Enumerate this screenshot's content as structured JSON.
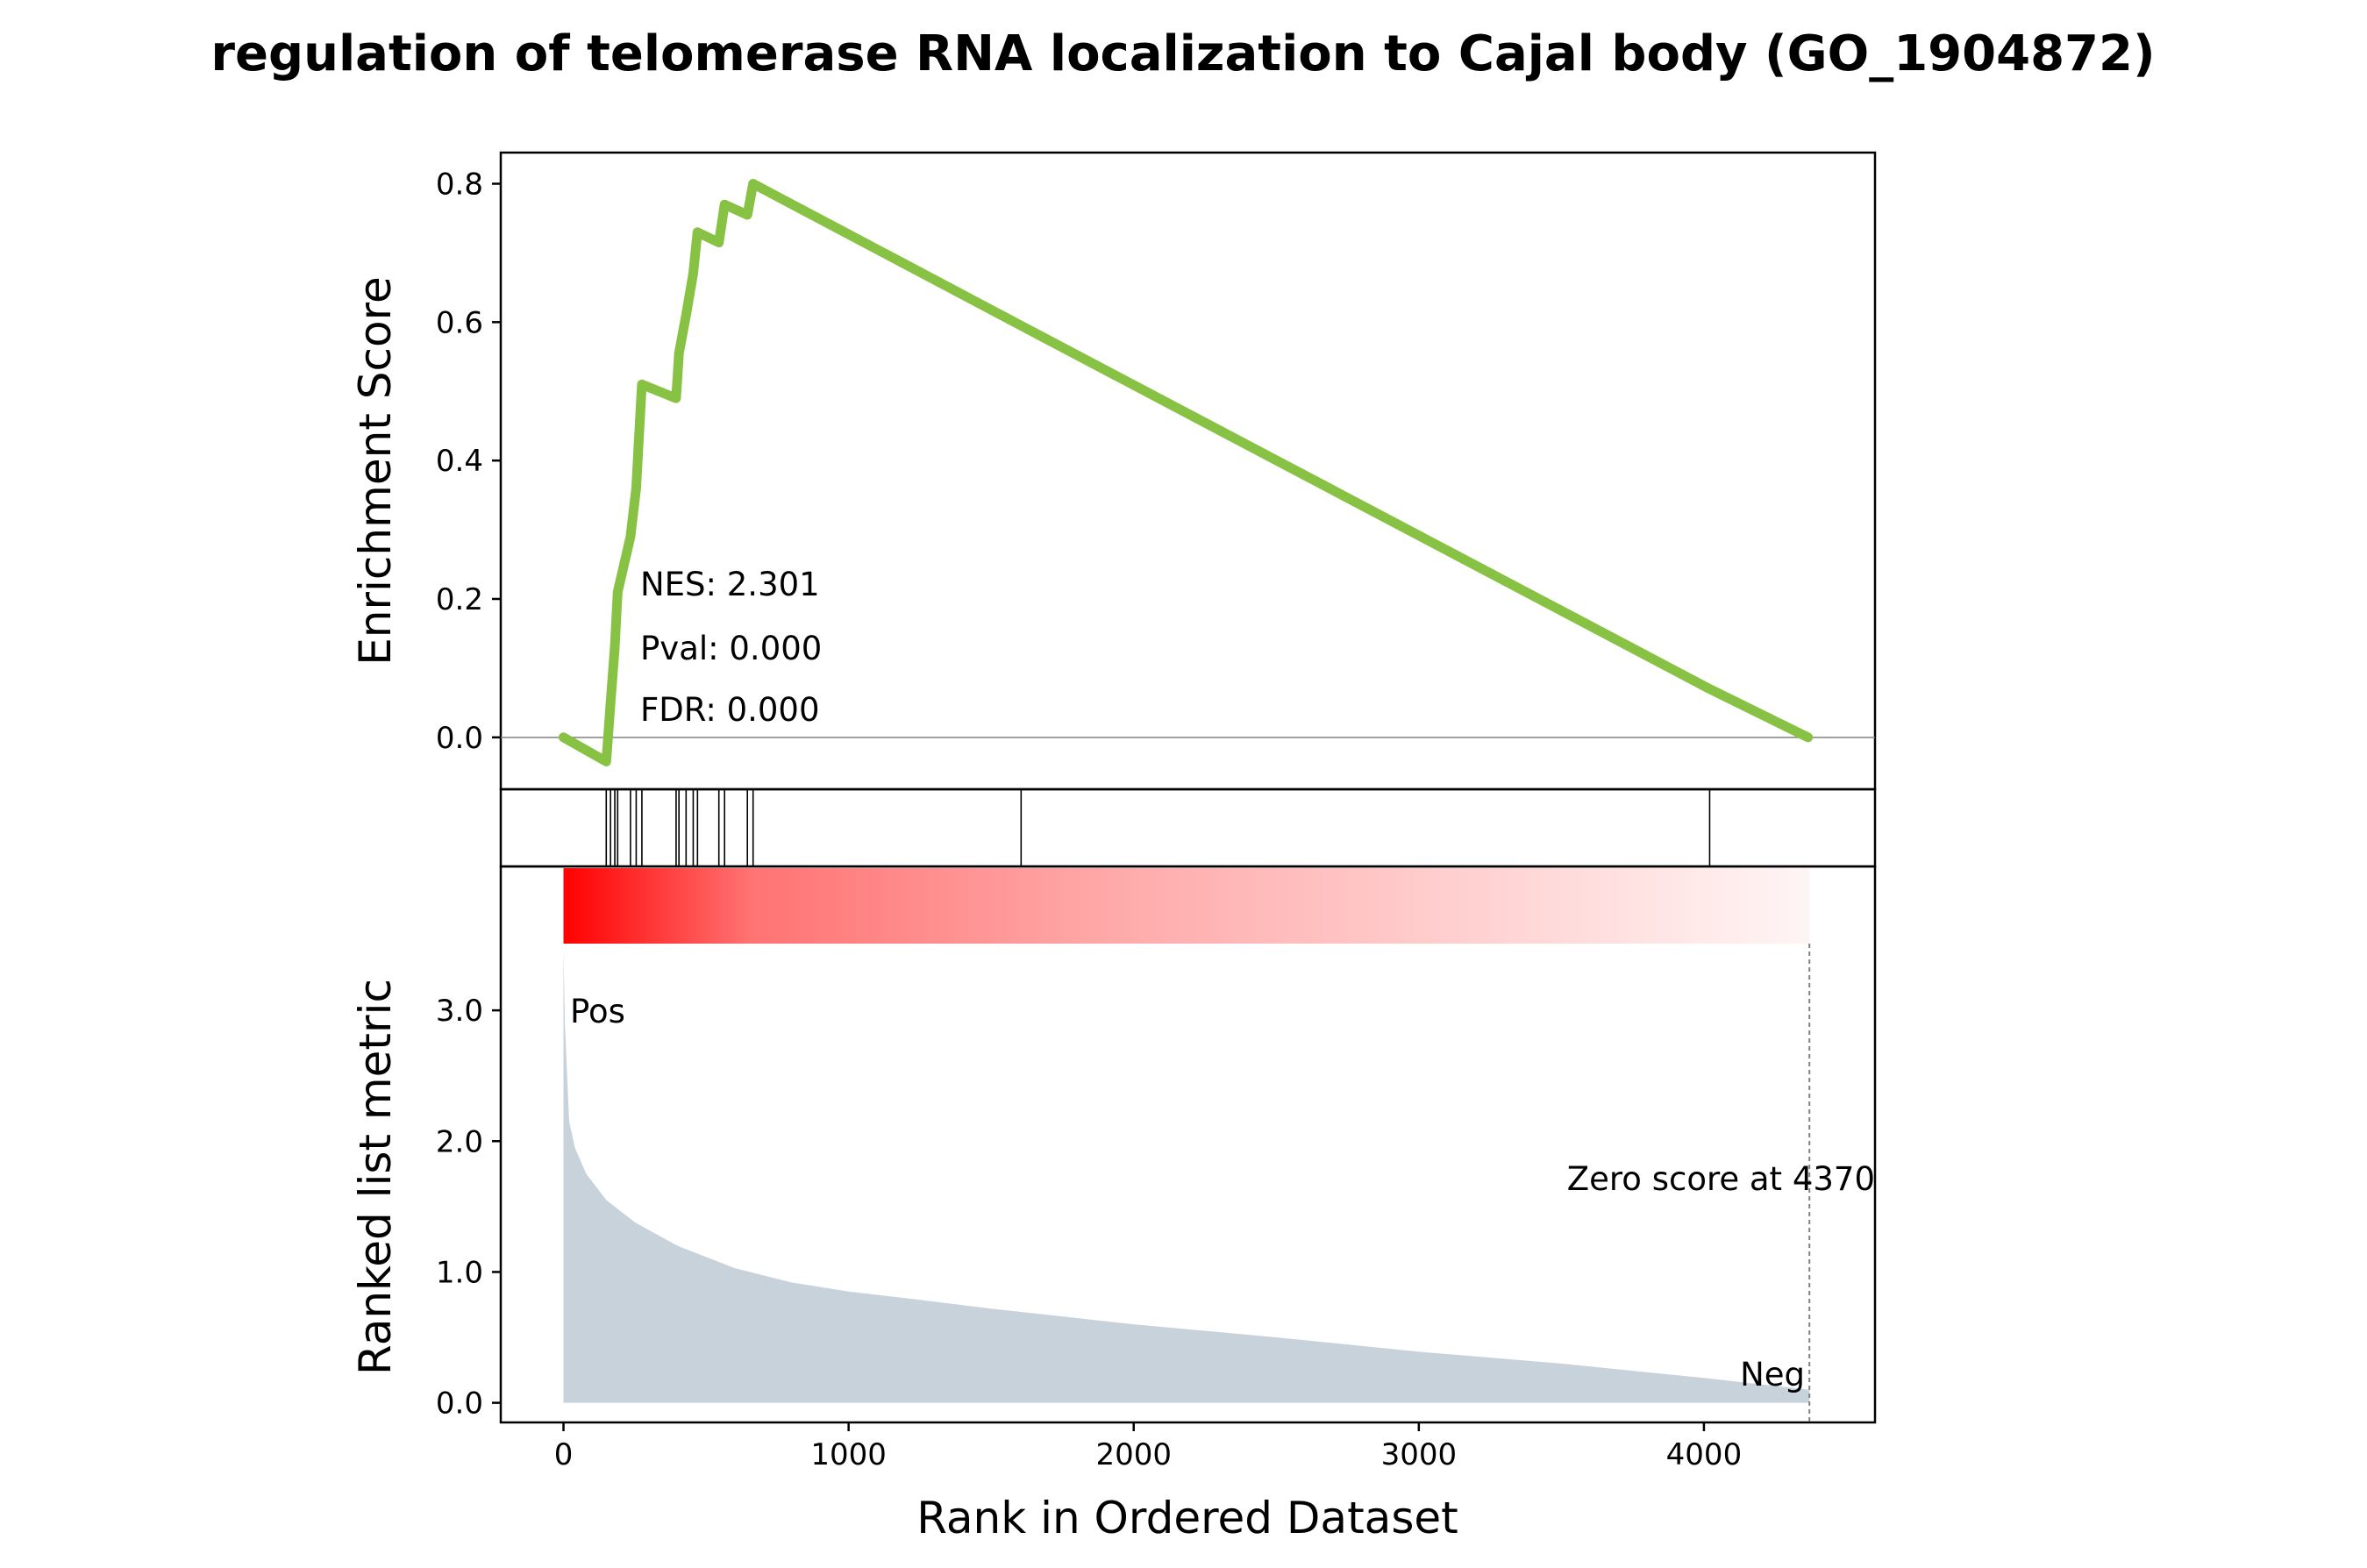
{
  "chart_data": {
    "type": "line",
    "title": "regulation of telomerase RNA localization to Cajal body (GO_1904872)",
    "xlabel": "Rank in Ordered Dataset",
    "xlim": [
      -220,
      4600
    ],
    "x_ticks": [
      {
        "value": 0,
        "label": "0"
      },
      {
        "value": 1000,
        "label": "1000"
      },
      {
        "value": 2000,
        "label": "2000"
      },
      {
        "value": 3000,
        "label": "3000"
      },
      {
        "value": 4000,
        "label": "4000"
      }
    ],
    "panels": {
      "enrichment": {
        "ylabel": "Enrichment Score",
        "ylim": [
          -0.075,
          0.845
        ],
        "y_ticks": [
          {
            "value": 0.0,
            "label": "0.0"
          },
          {
            "value": 0.2,
            "label": "0.2"
          },
          {
            "value": 0.4,
            "label": "0.4"
          },
          {
            "value": 0.6,
            "label": "0.6"
          },
          {
            "value": 0.8,
            "label": "0.8"
          }
        ],
        "series": [
          {
            "color": "#88c244",
            "x": [
              0,
              150,
              150,
              165,
              165,
              180,
              180,
              190,
              190,
              235,
              235,
              255,
              255,
              275,
              275,
              395,
              395,
              405,
              405,
              430,
              430,
              455,
              455,
              470,
              470,
              545,
              545,
              565,
              565,
              645,
              645,
              665,
              665,
              1605,
              1605,
              4020,
              4020,
              4365
            ],
            "y": [
              0.0,
              -0.035,
              -0.035,
              0.05,
              0.05,
              0.13,
              0.13,
              0.21,
              0.21,
              0.29,
              0.29,
              0.36,
              0.36,
              0.51,
              0.51,
              0.49,
              0.49,
              0.555,
              0.555,
              0.61,
              0.61,
              0.67,
              0.67,
              0.73,
              0.73,
              0.715,
              0.715,
              0.77,
              0.77,
              0.755,
              0.755,
              0.8,
              0.8,
              0.595,
              0.595,
              0.07,
              0.07,
              0.0
            ]
          }
        ],
        "stats": {
          "nes": "NES: 2.301",
          "pval": "Pval: 0.000",
          "fdr": "FDR: 0.000"
        }
      },
      "hits": {
        "positions": [
          150,
          165,
          180,
          190,
          235,
          255,
          275,
          395,
          405,
          430,
          455,
          470,
          545,
          565,
          645,
          665,
          1605,
          4020
        ]
      },
      "ranked_metric": {
        "ylabel": "Ranked list metric",
        "ylim": [
          -0.15,
          4.1
        ],
        "y_ticks": [
          {
            "value": 0.0,
            "label": "0.0"
          },
          {
            "value": 1.0,
            "label": "1.0"
          },
          {
            "value": 2.0,
            "label": "2.0"
          },
          {
            "value": 3.0,
            "label": "3.0"
          }
        ],
        "fill_color": "#c8d2db",
        "x": [
          0,
          5,
          20,
          40,
          80,
          150,
          250,
          400,
          600,
          800,
          1000,
          1200,
          1500,
          2000,
          2500,
          3000,
          3500,
          4000,
          4370
        ],
        "y": [
          3.47,
          2.9,
          2.15,
          1.95,
          1.75,
          1.55,
          1.38,
          1.2,
          1.03,
          0.92,
          0.85,
          0.8,
          0.72,
          0.6,
          0.5,
          0.39,
          0.3,
          0.19,
          0.1
        ],
        "heatmap_color": "#ff0000",
        "pos_label": "Pos",
        "pos_color": "#ff0000",
        "neg_label": "Neg",
        "neg_color": "#0000ff",
        "zero_score_label": "Zero score at 4370",
        "zero_score_x": 4370
      }
    }
  }
}
